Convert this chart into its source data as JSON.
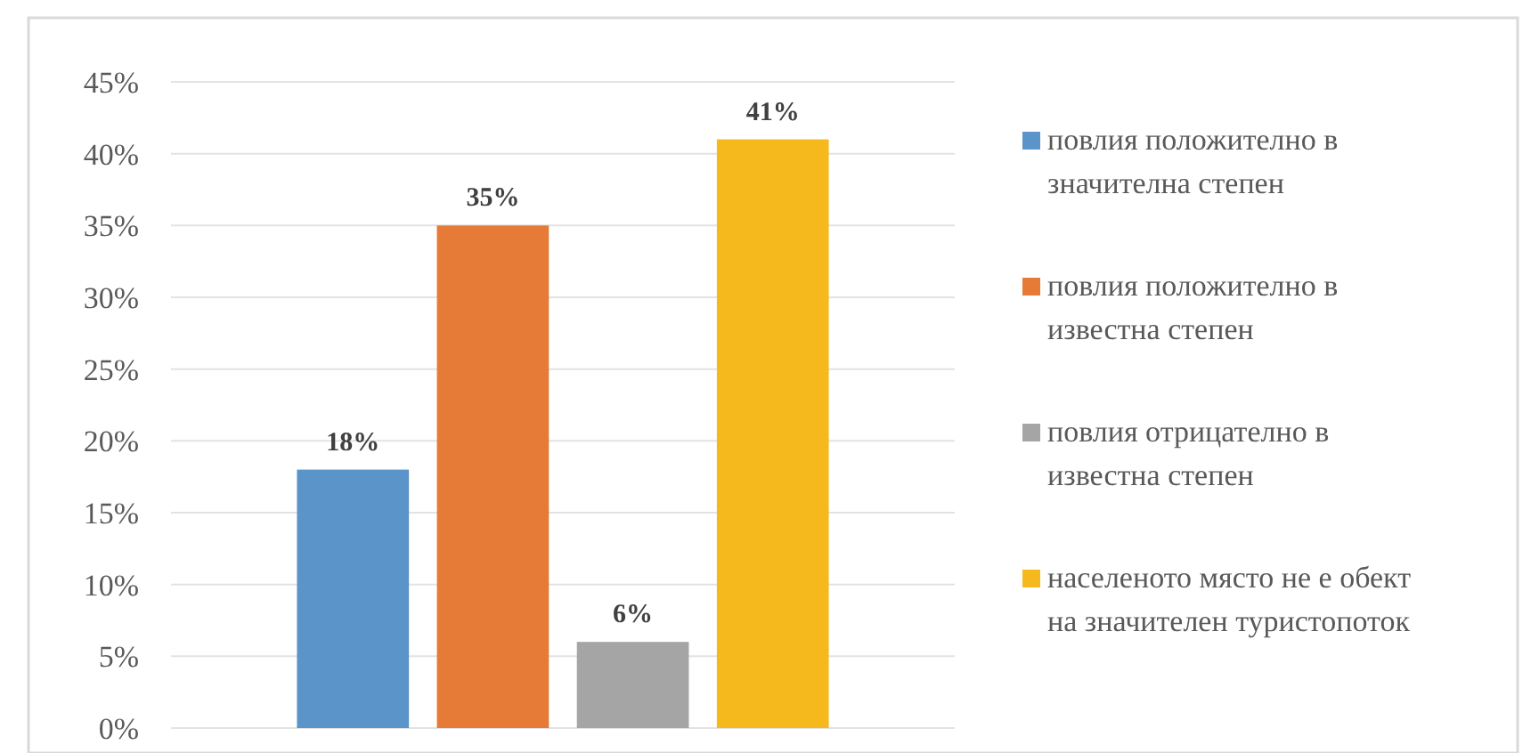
{
  "chart_data": {
    "type": "bar",
    "categories": [
      null
    ],
    "series": [
      {
        "name": "повлия положително в значителна степен",
        "color": "#5b94c9",
        "values": [
          18
        ],
        "value_labels": [
          "18%"
        ]
      },
      {
        "name": "повлия положително в известна степен",
        "color": "#e57b37",
        "values": [
          35
        ],
        "value_labels": [
          "35%"
        ]
      },
      {
        "name": "повлия отрицателно в известна степен",
        "color": "#a5a5a5",
        "values": [
          6
        ],
        "value_labels": [
          "6%"
        ]
      },
      {
        "name": "населеното място не е обект на значителен туристопоток",
        "color": "#f5b91e",
        "values": [
          41
        ],
        "value_labels": [
          "41%"
        ]
      }
    ],
    "ylim": [
      0,
      45
    ],
    "yticks": [
      {
        "value": 0,
        "label": "0%"
      },
      {
        "value": 5,
        "label": "5%"
      },
      {
        "value": 10,
        "label": "10%"
      },
      {
        "value": 15,
        "label": "15%"
      },
      {
        "value": 20,
        "label": "20%"
      },
      {
        "value": 25,
        "label": "25%"
      },
      {
        "value": 30,
        "label": "30%"
      },
      {
        "value": 35,
        "label": "35%"
      },
      {
        "value": 40,
        "label": "40%"
      },
      {
        "value": 45,
        "label": "45%"
      }
    ],
    "grid": "y",
    "legend": "right"
  }
}
